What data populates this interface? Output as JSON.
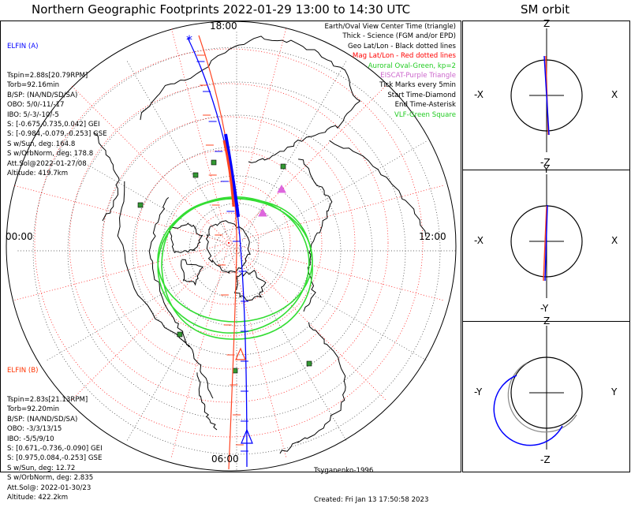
{
  "title": "Northern Geographic Footprints 2022-01-29 13:00 to 14:30 UTC",
  "sm_title": "SM orbit",
  "map": {
    "time_labels": {
      "top": "18:00",
      "left": "00:00",
      "right": "12:00",
      "bottom": "06:00"
    },
    "legend": [
      {
        "text": "Earth/Oval View Center Time (triangle)",
        "color": "#000000"
      },
      {
        "text": "Thick - Science (FGM and/or EPD)",
        "color": "#000000"
      },
      {
        "text": "Geo Lat/Lon - Black dotted lines",
        "color": "#000000"
      },
      {
        "text": "Mag Lat/Lon - Red dotted lines",
        "color": "#ff0000"
      },
      {
        "text": "Auroral Oval-Green, kp=2",
        "color": "#22cc22"
      },
      {
        "text": "EISCAT-Purple Triangle",
        "color": "#cc66cc"
      },
      {
        "text": "Tick Marks every 5min",
        "color": "#000000"
      },
      {
        "text": "Start Time-Diamond",
        "color": "#000000"
      },
      {
        "text": "End Time-Asterisk",
        "color": "#000000"
      },
      {
        "text": "VLF-Green Square",
        "color": "#22cc22"
      }
    ],
    "elfin_a": {
      "name": "ELFIN (A)",
      "color": "#0000ff",
      "lines": [
        "Tspin=2.88s[20.79RPM]",
        "Torb=92.16min",
        "B/SP: (NA/ND/SD/SA)",
        "OBO: 5/0/-11/-17",
        "IBO: 5/-3/-10/-5",
        "S: [-0.675,0.735,0.042] GEI",
        "S: [-0.984,-0.079,-0.253] GSE",
        "S w/Sun, deg: 164.8",
        "S w/OrbNorm, deg: 178.8",
        "Att.Sol@2022-01-27/08",
        "Altitude: 419.7km"
      ]
    },
    "elfin_b": {
      "name": "ELFIN (B)",
      "color": "#ff3300",
      "lines": [
        "Tspin=2.83s[21.13RPM]",
        "Torb=92.20min",
        "B/SP: (NA/ND/SD/SA)",
        "OBO: -3/3/13/15",
        "IBO: -5/5/9/10",
        "S: [0.671,-0.736,-0.090] GEI",
        "S: [0.975,0.084,-0.253] GSE",
        "S w/Sun, deg: 12.72",
        "S w/OrbNorm, deg: 2.835",
        "Att.Sol@: 2022-01-30/23",
        "Altitude: 422.2km"
      ]
    },
    "footer": [
      "Tsyganenko-1996",
      "Created: Fri Jan 13 17:50:58 2023"
    ]
  },
  "sm_panels": [
    {
      "top": "Z",
      "bottom": "-Z",
      "left": "-X",
      "right": "X"
    },
    {
      "top": "Y",
      "bottom": "-Y",
      "left": "-X",
      "right": "X"
    },
    {
      "top": "Z",
      "bottom": "-Z",
      "left": "-Y",
      "right": "Y"
    }
  ],
  "colors": {
    "elfin_a": "#0000ff",
    "elfin_b": "#ff4422",
    "oval": "#33dd33",
    "mag_grid": "#ff0000",
    "geo_grid": "#000000",
    "eiscat": "#dd66dd",
    "vlf": "#339933"
  }
}
